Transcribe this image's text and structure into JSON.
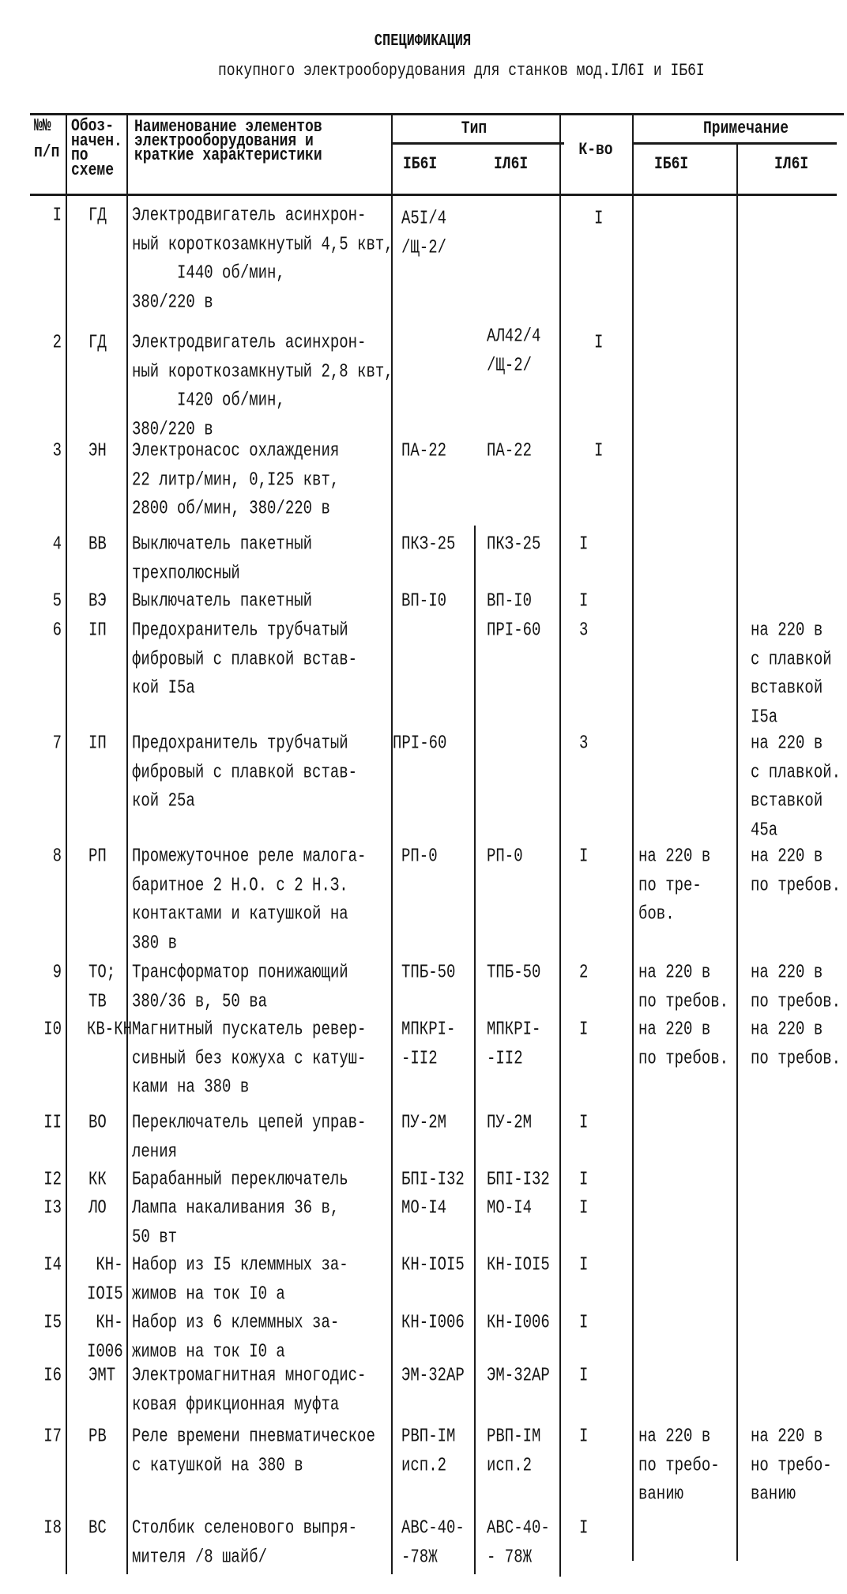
{
  "title": "СПЕЦИФИКАЦИЯ",
  "subtitle": "покупного электрооборудования для станков мод.IЛ6I и IБ6I",
  "header": {
    "num": [
      "№№",
      "п/п"
    ],
    "code": [
      "Обоз-",
      "начен.",
      "по",
      "схеме"
    ],
    "name": [
      "Наименование элементов",
      "электрооборудования и",
      "краткие характеристики"
    ],
    "type": "Тип",
    "type_sub": [
      "IБ6I",
      "IЛ6I"
    ],
    "qty": "К-во",
    "note": "Примечание",
    "note_sub": [
      "IБ6I",
      "IЛ6I"
    ]
  },
  "rows": [
    {
      "num": "I",
      "code": [
        "ГД"
      ],
      "name": [
        "Электродвигатель асинхрон-",
        "ный короткозамкнутый 4,5 квт,",
        "     I440 об/мин,",
        "380/220 в"
      ],
      "t1": [
        "А5I/4",
        "/Щ-2/"
      ],
      "t2": [],
      "qty": "I",
      "n1": [],
      "n2": []
    },
    {
      "num": "2",
      "code": [
        "ГД"
      ],
      "name": [
        "Электродвигатель асинхрон-",
        "ный короткозамкнутый 2,8 квт,",
        "     I420 об/мин,",
        "380/220 в"
      ],
      "t1": [],
      "t2": [
        "АЛ42/4",
        "/Щ-2/"
      ],
      "qty": "I",
      "n1": [],
      "n2": []
    },
    {
      "num": "3",
      "code": [
        "ЭН"
      ],
      "name": [
        "Электронасос охлаждения",
        "22 литр/мин, 0,I25 квт,",
        "2800 об/мин, 380/220 в"
      ],
      "t1": [
        "ПА-22"
      ],
      "t2": [
        "ПА-22"
      ],
      "qty": "I",
      "n1": [],
      "n2": []
    },
    {
      "num": "4",
      "code": [
        "ВВ"
      ],
      "name": [
        "Выключатель пакетный",
        "трехполюсный"
      ],
      "t1": [
        "ПКЗ-25"
      ],
      "t2": [
        "ПКЗ-25"
      ],
      "qty": "I",
      "n1": [],
      "n2": []
    },
    {
      "num": "5",
      "code": [
        "ВЭ"
      ],
      "name": [
        "Выключатель пакетный"
      ],
      "t1": [
        "ВП-I0"
      ],
      "t2": [
        "ВП-I0"
      ],
      "qty": "I",
      "n1": [],
      "n2": []
    },
    {
      "num": "6",
      "code": [
        "IП"
      ],
      "name": [
        "Предохранитель трубчатый",
        "фибровый с плавкой встав-",
        "кой I5а"
      ],
      "t1": [],
      "t2": [
        "ПРI-60"
      ],
      "qty": "3",
      "n1": [],
      "n2": [
        "на 220 в",
        "с плавкой",
        "вставкой",
        "I5а"
      ]
    },
    {
      "num": "7",
      "code": [
        "IП"
      ],
      "name": [
        "Предохранитель трубчатый",
        "фибровый с плавкой встав-",
        "кой 25а"
      ],
      "t1": [
        "ПРI-60"
      ],
      "t2": [],
      "qty": "3",
      "n1": [],
      "n2": [
        "на 220 в",
        "с плавкой.",
        "вставкой",
        "45а"
      ]
    },
    {
      "num": "8",
      "code": [
        "РП"
      ],
      "name": [
        "Промежуточное реле малога-",
        "баритное 2 Н.О. с 2 Н.З.",
        "контактами и катушкой на",
        "380 в"
      ],
      "t1": [
        "РП-0"
      ],
      "t2": [
        "РП-0"
      ],
      "qty": "I",
      "n1": [
        "на 220 в",
        "по тре-",
        "бов."
      ],
      "n2": [
        "на 220 в",
        "по требов."
      ]
    },
    {
      "num": "9",
      "code": [
        "ТО;",
        "ТВ"
      ],
      "name": [
        "Трансформатор понижающий",
        "380/36 в, 50 ва"
      ],
      "t1": [
        "ТПБ-50"
      ],
      "t2": [
        "ТПБ-50"
      ],
      "qty": "2",
      "n1": [
        "на 220 в",
        "по требов."
      ],
      "n2": [
        "на 220 в",
        "по требов."
      ]
    },
    {
      "num": "I0",
      "code": [
        "КВ-КН"
      ],
      "name": [
        "Магнитный пускатель ревер-",
        "сивный без кожуха с катуш-",
        "ками на 380 в"
      ],
      "t1": [
        "МПКРI-",
        "-II2"
      ],
      "t2": [
        "МПКРI-",
        "-II2"
      ],
      "qty": "I",
      "n1": [
        "на 220 в",
        "по требов."
      ],
      "n2": [
        "на 220 в",
        "по требов."
      ]
    },
    {
      "num": "II",
      "code": [
        "ВО"
      ],
      "name": [
        "Переключатель цепей управ-",
        "ления"
      ],
      "t1": [
        "ПУ-2М"
      ],
      "t2": [
        "ПУ-2М"
      ],
      "qty": "I",
      "n1": [],
      "n2": []
    },
    {
      "num": "I2",
      "code": [
        "КК"
      ],
      "name": [
        "Барабанный переключатель"
      ],
      "t1": [
        "БПI-I32"
      ],
      "t2": [
        "БПI-I32"
      ],
      "qty": "I",
      "n1": [],
      "n2": []
    },
    {
      "num": "I3",
      "code": [
        "ЛО"
      ],
      "name": [
        "Лампа накаливания 36 в,",
        "50 вт"
      ],
      "t1": [
        "МО-I4"
      ],
      "t2": [
        "МО-I4"
      ],
      "qty": "I",
      "n1": [],
      "n2": []
    },
    {
      "num": "I4",
      "code": [
        " КН-",
        "IOI5"
      ],
      "name": [
        "Набор из I5 клеммных за-",
        "жимов на ток I0 а"
      ],
      "t1": [
        "КН-IOI5"
      ],
      "t2": [
        "КН-IOI5"
      ],
      "qty": "I",
      "n1": [],
      "n2": []
    },
    {
      "num": "I5",
      "code": [
        " КН-",
        "I006"
      ],
      "name": [
        "Набор из 6 клеммных за-",
        "жимов на ток I0 а"
      ],
      "t1": [
        "КН-I006"
      ],
      "t2": [
        "КН-I006"
      ],
      "qty": "I",
      "n1": [],
      "n2": []
    },
    {
      "num": "I6",
      "code": [
        "ЭМТ"
      ],
      "name": [
        "Электромагнитная многодис-",
        "ковая фрикционная муфта"
      ],
      "t1": [
        "ЭМ-32АР"
      ],
      "t2": [
        "ЭМ-32АР"
      ],
      "qty": "I",
      "n1": [],
      "n2": []
    },
    {
      "num": "I7",
      "code": [
        "РВ"
      ],
      "name": [
        "Реле времени пневматическое",
        "с катушкой на 380 в"
      ],
      "t1": [
        "РВП-IМ",
        "исп.2"
      ],
      "t2": [
        "РВП-IМ",
        "исп.2"
      ],
      "qty": "I",
      "n1": [
        "на 220 в",
        "по требо-",
        "ванию"
      ],
      "n2": [
        "на 220 в",
        "но требо-",
        "ванию"
      ]
    },
    {
      "num": "I8",
      "code": [
        "ВС"
      ],
      "name": [
        "Столбик селенового выпря-",
        "мителя /8 шайб/"
      ],
      "t1": [
        "АВС-40-",
        "-78Ж"
      ],
      "t2": [
        "АВС-40-",
        "- 78Ж"
      ],
      "qty": "I",
      "n1": [],
      "n2": []
    }
  ]
}
